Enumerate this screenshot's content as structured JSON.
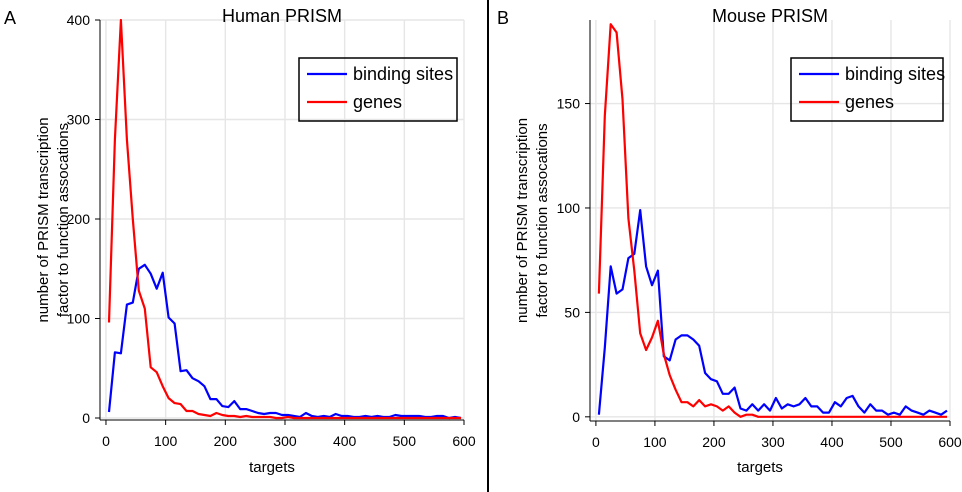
{
  "chart_data": [
    {
      "type": "line",
      "panel_label": "A",
      "title": "Human PRISM",
      "xlabel": "targets",
      "ylabel_lines": [
        "number of PRISM transcription",
        "factor to function assocations"
      ],
      "xlim": [
        -10,
        600
      ],
      "ylim": [
        -2,
        400
      ],
      "xticks": [
        0,
        100,
        200,
        300,
        400,
        500,
        600
      ],
      "yticks": [
        0,
        100,
        200,
        300,
        400
      ],
      "grid": true,
      "legend_position": "top-right",
      "series": [
        {
          "name": "binding sites",
          "color": "#0000ff",
          "x": [
            5,
            15,
            25,
            35,
            45,
            55,
            65,
            75,
            85,
            95,
            105,
            115,
            125,
            135,
            145,
            155,
            165,
            175,
            185,
            195,
            205,
            215,
            225,
            235,
            245,
            255,
            265,
            275,
            285,
            295,
            305,
            315,
            325,
            335,
            345,
            355,
            365,
            375,
            385,
            395,
            405,
            415,
            425,
            435,
            445,
            455,
            465,
            475,
            485,
            495,
            505,
            515,
            525,
            535,
            545,
            555,
            565,
            575,
            585,
            595
          ],
          "y": [
            6,
            66,
            65,
            114,
            116,
            150,
            154,
            145,
            130,
            146,
            101,
            95,
            47,
            48,
            40,
            37,
            32,
            19,
            19,
            12,
            11,
            17,
            9,
            9,
            7,
            5,
            4,
            5,
            5,
            3,
            3,
            2,
            1,
            5,
            2,
            1,
            2,
            1,
            4,
            2,
            2,
            1,
            1,
            2,
            1,
            2,
            1,
            1,
            3,
            2,
            2,
            2,
            2,
            1,
            1,
            2,
            2,
            0,
            1,
            0
          ]
        },
        {
          "name": "genes",
          "color": "#ff0000",
          "x": [
            5,
            15,
            25,
            35,
            45,
            55,
            65,
            75,
            85,
            95,
            105,
            115,
            125,
            135,
            145,
            155,
            165,
            175,
            185,
            195,
            205,
            215,
            225,
            235,
            245,
            255,
            265,
            275,
            285,
            295,
            305,
            315,
            325,
            335,
            345,
            355,
            365,
            375,
            385,
            395,
            405,
            415,
            425,
            435,
            445,
            455,
            465,
            475,
            485,
            495,
            505,
            515,
            525,
            535,
            545,
            555,
            565,
            575,
            585,
            595
          ],
          "y": [
            96,
            280,
            400,
            280,
            200,
            128,
            110,
            51,
            46,
            32,
            20,
            15,
            14,
            7,
            7,
            4,
            3,
            2,
            5,
            3,
            2,
            2,
            1,
            2,
            1,
            1,
            1,
            1,
            0,
            0,
            1,
            0,
            0,
            0,
            0,
            0,
            0,
            0,
            0,
            0,
            0,
            0,
            0,
            0,
            0,
            0,
            0,
            0,
            0,
            0,
            0,
            0,
            0,
            0,
            0,
            0,
            0,
            0,
            0,
            0
          ]
        }
      ]
    },
    {
      "type": "line",
      "panel_label": "B",
      "title": "Mouse PRISM",
      "xlabel": "targets",
      "ylabel_lines": [
        "number of PRISM transcription",
        "factor to function assocations"
      ],
      "xlim": [
        -10,
        600
      ],
      "ylim": [
        -2,
        190
      ],
      "xticks": [
        0,
        100,
        200,
        300,
        400,
        500,
        600
      ],
      "yticks": [
        0,
        50,
        100,
        150
      ],
      "grid": true,
      "legend_position": "top-right",
      "series": [
        {
          "name": "binding sites",
          "color": "#0000ff",
          "x": [
            5,
            15,
            25,
            35,
            45,
            55,
            65,
            75,
            85,
            95,
            105,
            115,
            125,
            135,
            145,
            155,
            165,
            175,
            185,
            195,
            205,
            215,
            225,
            235,
            245,
            255,
            265,
            275,
            285,
            295,
            305,
            315,
            325,
            335,
            345,
            355,
            365,
            375,
            385,
            395,
            405,
            415,
            425,
            435,
            445,
            455,
            465,
            475,
            485,
            495,
            505,
            515,
            525,
            535,
            545,
            555,
            565,
            575,
            585,
            595
          ],
          "y": [
            1,
            33,
            72,
            59,
            61,
            76,
            78,
            99,
            72,
            63,
            70,
            29,
            27,
            37,
            39,
            39,
            37,
            34,
            21,
            18,
            17,
            11,
            11,
            14,
            4,
            3,
            6,
            3,
            6,
            3,
            9,
            4,
            6,
            5,
            6,
            9,
            5,
            5,
            2,
            2,
            7,
            5,
            9,
            10,
            5,
            2,
            6,
            3,
            3,
            1,
            2,
            1,
            5,
            3,
            2,
            1,
            3,
            2,
            1,
            3
          ]
        },
        {
          "name": "genes",
          "color": "#ff0000",
          "x": [
            5,
            15,
            25,
            35,
            45,
            55,
            65,
            75,
            85,
            95,
            105,
            115,
            125,
            135,
            145,
            155,
            165,
            175,
            185,
            195,
            205,
            215,
            225,
            235,
            245,
            255,
            265,
            275,
            285,
            295,
            305,
            315,
            325,
            335,
            345,
            355,
            365,
            375,
            385,
            395,
            405,
            415,
            425,
            435,
            445,
            455,
            465,
            475,
            485,
            495,
            505,
            515,
            525,
            535,
            545,
            555,
            565,
            575,
            585,
            595
          ],
          "y": [
            59,
            144,
            188,
            184,
            152,
            95,
            70,
            40,
            32,
            38,
            46,
            30,
            20,
            13,
            7,
            7,
            5,
            8,
            5,
            6,
            5,
            3,
            5,
            2,
            0,
            1,
            1,
            0,
            0,
            0,
            0,
            0,
            0,
            0,
            0,
            0,
            0,
            0,
            0,
            0,
            0,
            0,
            0,
            0,
            0,
            0,
            0,
            0,
            0,
            0,
            0,
            0,
            0,
            0,
            0,
            0,
            0,
            0,
            0,
            0
          ]
        }
      ]
    }
  ]
}
